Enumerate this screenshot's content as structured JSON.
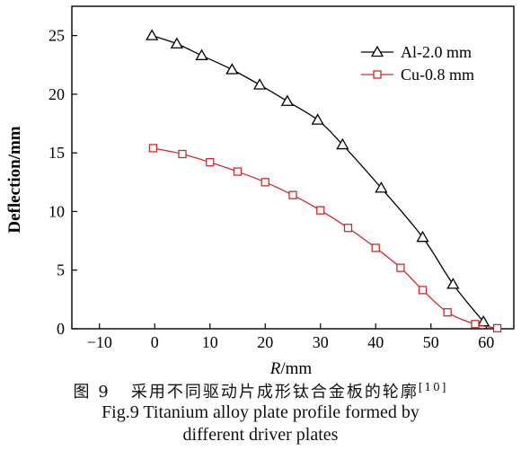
{
  "caption": {
    "cn_prefix": "图 9",
    "cn_text": "采用不同驱动片成形钛合金板的轮廓",
    "cn_ref": "[10]",
    "en_line1": "Fig.9 Titanium alloy plate profile formed by",
    "en_line2": "different driver plates"
  },
  "chart_data": {
    "type": "line",
    "xlabel_italic": "R",
    "xlabel_unit": "/mm",
    "ylabel": "Deflection/mm",
    "xlim": [
      -15,
      65
    ],
    "ylim": [
      0,
      27.5
    ],
    "x_ticks": [
      -10,
      0,
      10,
      20,
      30,
      40,
      50,
      60
    ],
    "y_ticks": [
      0,
      5,
      10,
      15,
      20,
      25
    ],
    "legend_position": "top-right",
    "grid": false,
    "series": [
      {
        "name": "Al-2.0 mm",
        "marker": "triangle",
        "color": "#000000",
        "x": [
          -0.5,
          4,
          8.5,
          14,
          19,
          24,
          29.5,
          34,
          41,
          48.5,
          54,
          59.5
        ],
        "y": [
          25.0,
          24.3,
          23.3,
          22.1,
          20.8,
          19.4,
          17.8,
          15.7,
          12.0,
          7.8,
          3.8,
          0.6
        ]
      },
      {
        "name": "Cu-0.8 mm",
        "marker": "square",
        "color": "#d02a2a",
        "x": [
          -0.3,
          5,
          10,
          15,
          20,
          25,
          30,
          35,
          40,
          44.5,
          48.5,
          53,
          58,
          62
        ],
        "y": [
          15.4,
          14.9,
          14.2,
          13.4,
          12.5,
          11.4,
          10.1,
          8.6,
          6.9,
          5.2,
          3.3,
          1.4,
          0.4,
          0.05
        ]
      }
    ]
  }
}
